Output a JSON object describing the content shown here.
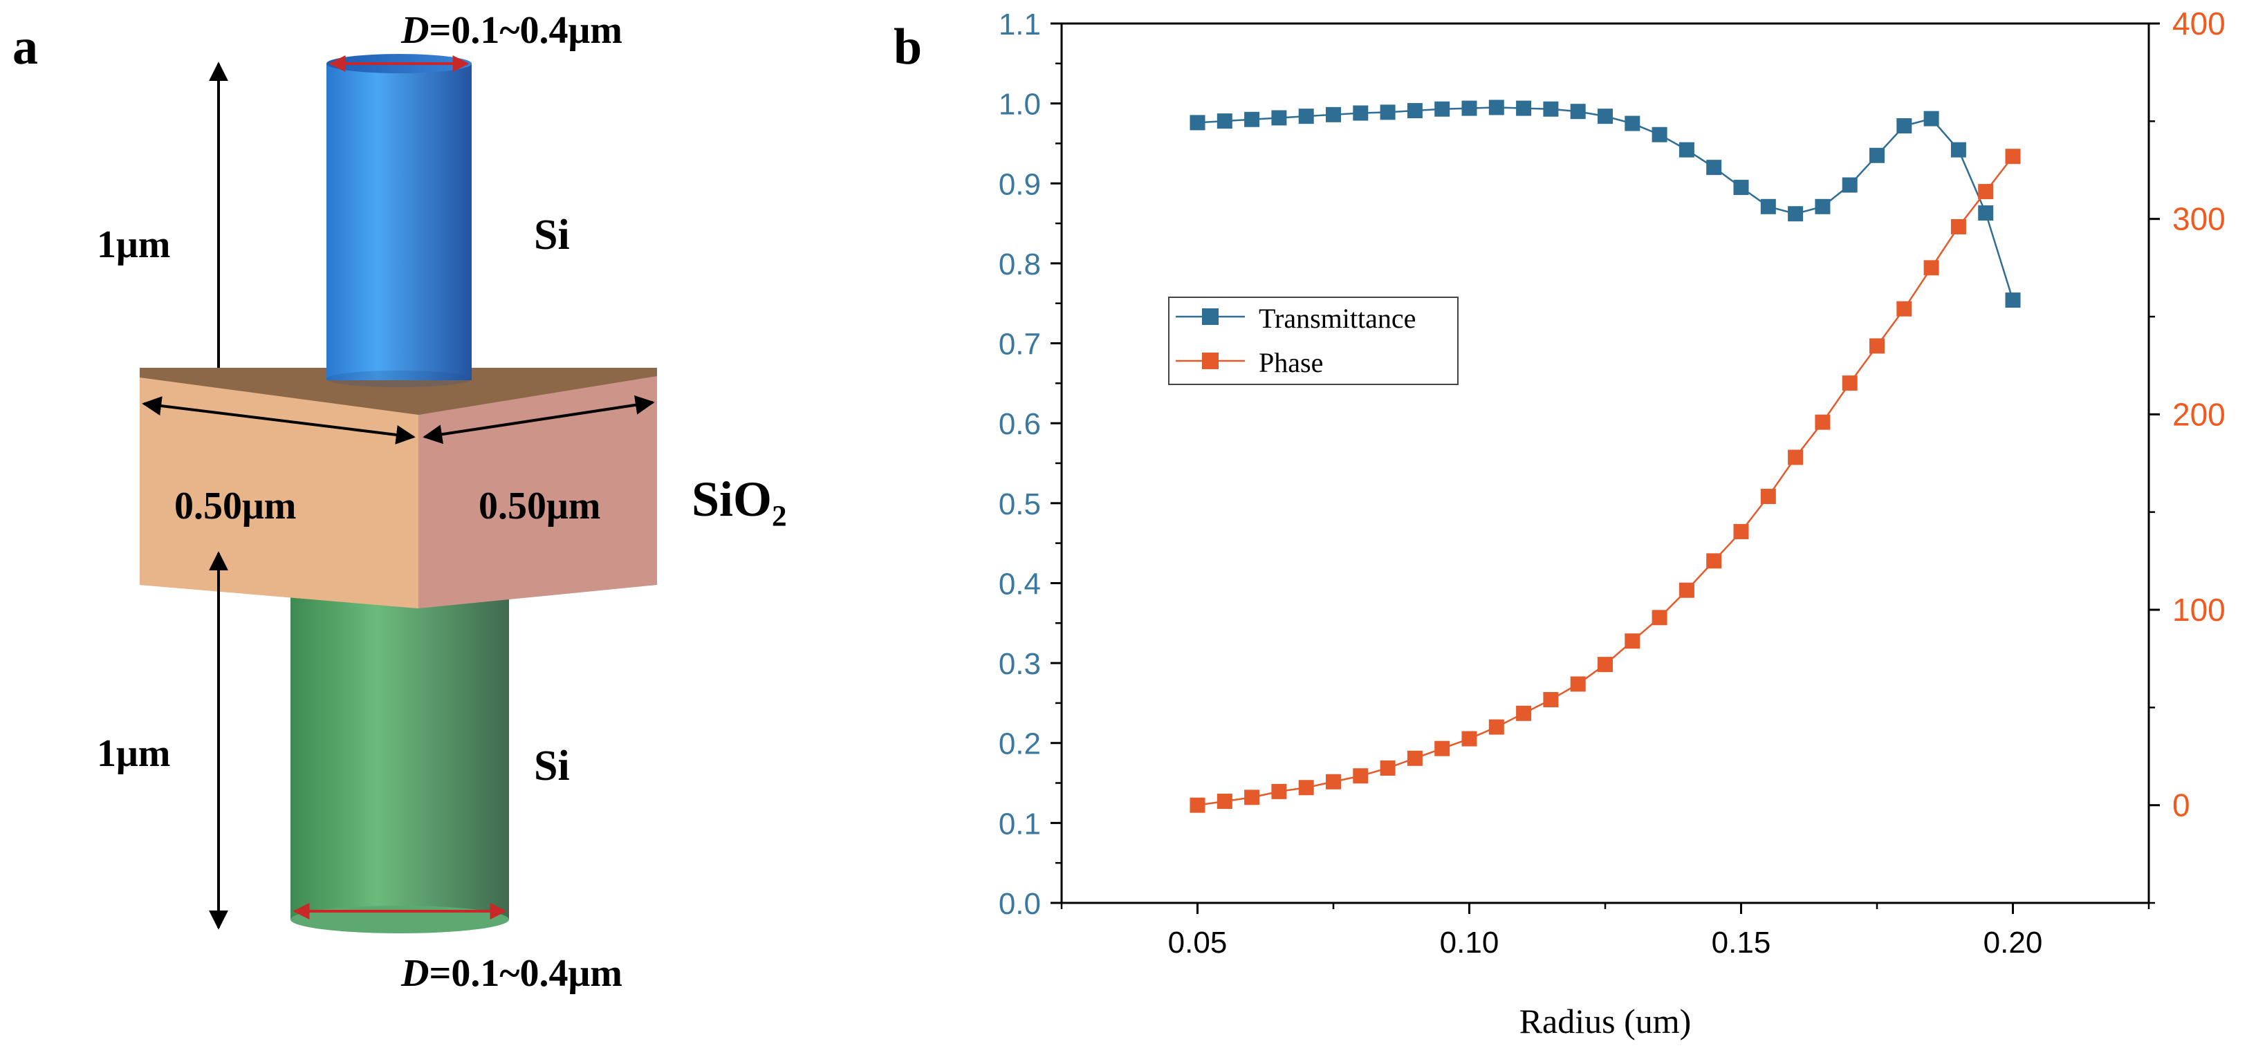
{
  "panel_a": {
    "label": "a",
    "diameter_top": {
      "italic": "D",
      "rest": "=0.1~0.4μm"
    },
    "diameter_bottom": {
      "italic": "D",
      "rest": "=0.1~0.4μm"
    },
    "height_top": "1μm",
    "height_bottom": "1μm",
    "material_top": "Si",
    "material_bottom": "Si",
    "substrate_material": "SiO₂",
    "substrate_width_left": "0.50μm",
    "substrate_width_right": "0.50μm",
    "colors": {
      "top_pillar": "#3d8fe0",
      "bottom_pillar": "#5aa46a",
      "substrate_front": "#e8b48a",
      "substrate_side": "#cd948a",
      "substrate_top": "#8c6848",
      "dimension_red": "#c82828"
    }
  },
  "chart_data": {
    "label": "b",
    "type": "line",
    "title": "",
    "xlabel": "Radius (um)",
    "ylabel": "",
    "y2label": "",
    "xlim": [
      0.025,
      0.225
    ],
    "ylim": [
      0.0,
      1.1
    ],
    "y2lim": [
      -50,
      400
    ],
    "x_ticks": [
      "0.05",
      "0.10",
      "0.15",
      "0.20"
    ],
    "y_ticks": [
      "0.0",
      "0.1",
      "0.2",
      "0.3",
      "0.4",
      "0.5",
      "0.6",
      "0.7",
      "0.8",
      "0.9",
      "1.0",
      "1.1"
    ],
    "y2_ticks": [
      "0",
      "100",
      "200",
      "300",
      "400"
    ],
    "legend_position": "upper-left",
    "x": [
      0.05,
      0.055,
      0.06,
      0.065,
      0.07,
      0.075,
      0.08,
      0.085,
      0.09,
      0.095,
      0.1,
      0.105,
      0.11,
      0.115,
      0.12,
      0.125,
      0.13,
      0.135,
      0.14,
      0.145,
      0.15,
      0.155,
      0.16,
      0.165,
      0.17,
      0.175,
      0.18,
      0.185,
      0.19,
      0.195,
      0.2
    ],
    "series": [
      {
        "name": "Transmittance",
        "axis": "left",
        "color": "#2e6e94",
        "values": [
          0.976,
          0.978,
          0.98,
          0.982,
          0.984,
          0.986,
          0.988,
          0.989,
          0.991,
          0.993,
          0.994,
          0.995,
          0.994,
          0.993,
          0.99,
          0.984,
          0.975,
          0.961,
          0.942,
          0.92,
          0.895,
          0.871,
          0.862,
          0.871,
          0.898,
          0.935,
          0.972,
          0.981,
          0.942,
          0.863,
          0.754
        ]
      },
      {
        "name": "Phase",
        "axis": "right",
        "color": "#e55a2a",
        "values": [
          0,
          2,
          4,
          7,
          9,
          12,
          15,
          19,
          24,
          29,
          34,
          40,
          47,
          54,
          62,
          72,
          84,
          96,
          110,
          125,
          140,
          158,
          178,
          196,
          216,
          235,
          254,
          275,
          296,
          314,
          332
        ]
      }
    ],
    "colors": {
      "left_axis": "#3a78a0",
      "right_axis": "#f05a1e",
      "frame": "#000000"
    }
  }
}
